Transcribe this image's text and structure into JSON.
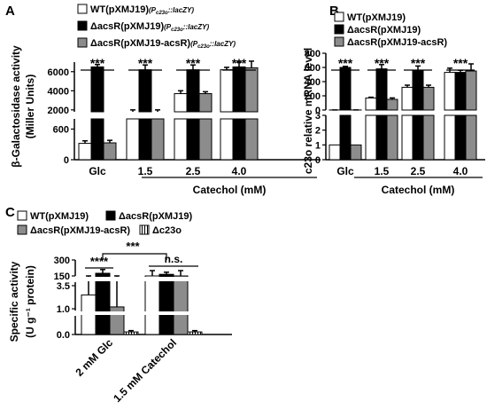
{
  "colors": {
    "wt": "#ffffff",
    "mut": "#000000",
    "comp": "#8c8c8c",
    "del": "#ffffff"
  },
  "chart_data": [
    {
      "panel": "A",
      "type": "bar",
      "legend": [
        {
          "base": "WT(pXMJ19)",
          "sub": "(P",
          "subsub": "c23o",
          "tail": "::lacZY)"
        },
        {
          "base": "ΔacsR(pXMJ19)",
          "sub": "(P",
          "subsub": "c23o",
          "tail": "::lacZY)"
        },
        {
          "base": "ΔacsR(pXMJ19-acsR)",
          "sub": "(P",
          "subsub": "c23o",
          "tail": "::lacZY)"
        }
      ],
      "ylabel": [
        "β-Galactosidase activity",
        "(Miller Units)"
      ],
      "xlabel": "Catechol (mM)",
      "categories": [
        "Glc",
        "1.5",
        "2.5",
        "4.0"
      ],
      "yticks_upper": [
        "6000",
        "4000",
        "2000"
      ],
      "yticks_lower": [
        "600",
        "0"
      ],
      "ylim_upper": [
        1800,
        7000
      ],
      "ylim_lower": [
        0,
        800
      ],
      "significance": [
        "***",
        "***",
        "***",
        "***"
      ],
      "series": [
        {
          "name": "WT(pXMJ19)",
          "values": [
            320,
            1800,
            3700,
            6200
          ],
          "err": [
            50,
            200,
            300,
            250
          ]
        },
        {
          "name": "ΔacsR(pXMJ19)",
          "values": [
            6500,
            6200,
            6200,
            6500
          ],
          "err": [
            250,
            500,
            500,
            500
          ]
        },
        {
          "name": "ΔacsR(pXMJ19-acsR)",
          "values": [
            330,
            1800,
            3700,
            6400
          ],
          "err": [
            50,
            200,
            200,
            700
          ]
        }
      ]
    },
    {
      "panel": "B",
      "type": "bar",
      "legend": [
        "WT(pXMJ19)",
        "ΔacsR(pXMJ19)",
        "ΔacsR(pXMJ19-acsR)"
      ],
      "ylabel": [
        "c23o relative  mRNA level"
      ],
      "xlabel": "Catechol (mM)",
      "categories": [
        "Glc",
        "1.5",
        "2.5",
        "4.0"
      ],
      "yticks_upper": [
        "800",
        "600",
        "400",
        "200",
        "0"
      ],
      "yticks_lower": [
        "3",
        "2",
        "1",
        "0"
      ],
      "ylim_upper": [
        0,
        800
      ],
      "ylim_lower": [
        0,
        3
      ],
      "significance": [
        "***",
        "***",
        "***",
        "***"
      ],
      "series": [
        {
          "name": "WT(pXMJ19)",
          "values": [
            1,
            170,
            320,
            530
          ],
          "err": [
            0.1,
            10,
            30,
            60
          ]
        },
        {
          "name": "ΔacsR(pXMJ19)",
          "values": [
            600,
            580,
            560,
            530
          ],
          "err": [
            15,
            60,
            60,
            30
          ]
        },
        {
          "name": "ΔacsR(pXMJ19-acsR)",
          "values": [
            1,
            150,
            320,
            550
          ],
          "err": [
            0.15,
            20,
            30,
            100
          ]
        }
      ]
    },
    {
      "panel": "C",
      "type": "bar",
      "legend": [
        "WT(pXMJ19)",
        "ΔacsR(pXMJ19)",
        "ΔacsR(pXMJ19-acsR)",
        "Δc23o"
      ],
      "ylabel": [
        "Specific  activity",
        "(U g⁻¹ protein)"
      ],
      "categories": [
        "2 mM Glc",
        "1.5 mM Catechol"
      ],
      "yticks": [
        "300",
        "150",
        "3.5",
        "1.0",
        "0.0"
      ],
      "significance": [
        {
          "label": "****",
          "between": "WT vs ΔacsR (Glc)"
        },
        {
          "label": "***",
          "between": "ΔacsR Glc vs Catechol"
        },
        {
          "label": "n.s.",
          "between": "Catechol strains"
        }
      ],
      "series": [
        {
          "name": "WT(pXMJ19)",
          "values": [
            2.5,
            120
          ]
        },
        {
          "name": "ΔacsR(pXMJ19)",
          "values": [
            175,
            165
          ]
        },
        {
          "name": "ΔacsR(pXMJ19-acsR)",
          "values": [
            1.2,
            120
          ]
        },
        {
          "name": "Δc23o",
          "values": [
            0.1,
            0.1
          ]
        }
      ]
    }
  ]
}
